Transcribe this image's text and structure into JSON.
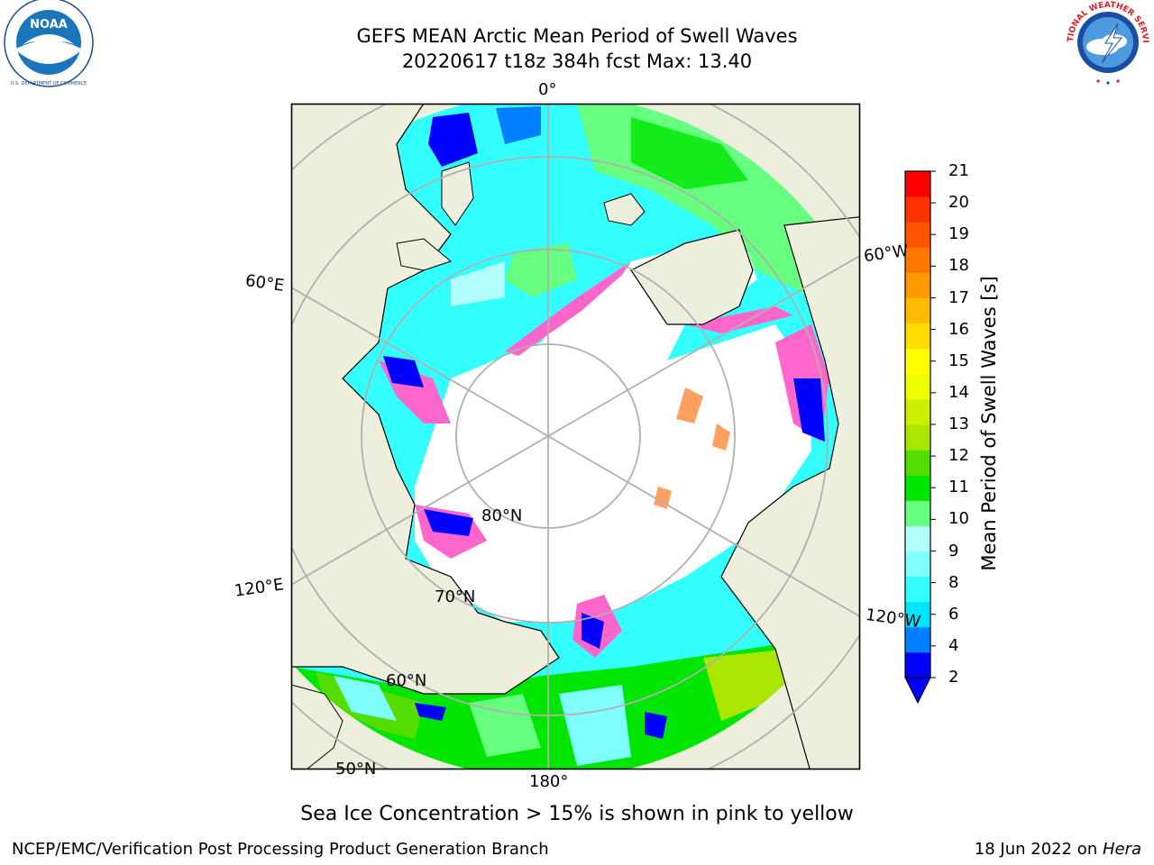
{
  "header": {
    "title_line1": "GEFS MEAN Arctic Mean Period of Swell Waves",
    "title_line2": "20220617 t18z 384h fcst   Max: 13.40"
  },
  "logos": {
    "left": {
      "icon": "noaa-logo",
      "text": "NOAA",
      "ring_text": "NATIONAL OCEANIC AND ATMOSPHERIC ADMINISTRATION · U.S. DEPARTMENT OF COMMERCE"
    },
    "right": {
      "icon": "nws-logo",
      "ring_text": "NATIONAL WEATHER SERVICE"
    }
  },
  "map": {
    "projection": "north-polar-stereographic",
    "longitude_labels": {
      "top": "0°",
      "left_upper": "60°E",
      "left_lower": "120°E",
      "bottom": "180°",
      "right_upper": "60°W",
      "right_lower": "120°W"
    },
    "latitude_labels": [
      "80°N",
      "70°N",
      "60°N",
      "50°N"
    ],
    "colors": {
      "land": "#eeeedc",
      "ice_free_no_data": "#ffffff",
      "graticule": "#b0b0b0",
      "coast": "#000000",
      "sea_ice": [
        "#ff66cc",
        "#ffa060",
        "#ffff00"
      ]
    }
  },
  "colorbar": {
    "label": "Mean Period of Swell Waves [s]",
    "ticks": [
      "21",
      "20",
      "19",
      "18",
      "17",
      "16",
      "15",
      "14",
      "13",
      "12",
      "11",
      "10",
      "9",
      "8",
      "6",
      "4",
      "2"
    ],
    "colors": [
      "#0000ff",
      "#0080ff",
      "#00e5ff",
      "#33ffff",
      "#80ffff",
      "#b3ffff",
      "#66ff80",
      "#00e600",
      "#55dd00",
      "#aae600",
      "#ccf000",
      "#eeff00",
      "#ffff00",
      "#ffdd00",
      "#ffbb00",
      "#ff9900",
      "#ff7700",
      "#ff5500",
      "#ff3300",
      "#ff0000"
    ],
    "extend": "min"
  },
  "caption": "Sea Ice Concentration > 15% is shown in pink to yellow",
  "footer": {
    "left": "NCEP/EMC/Verification Post Processing Product Generation Branch",
    "right_prefix": "18 Jun 2022 on ",
    "right_host": "Hera"
  }
}
